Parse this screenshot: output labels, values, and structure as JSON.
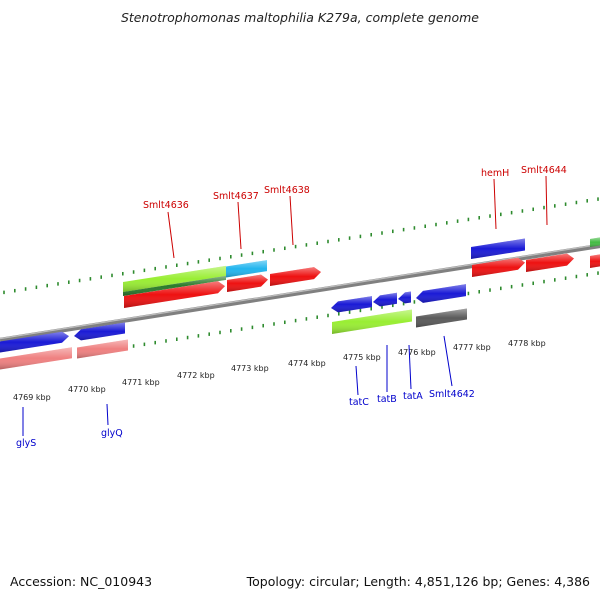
{
  "title": "Stenotrophomonas maltophilia K279a, complete genome",
  "footer": {
    "accession": "Accession: NC_010943",
    "topology": "Topology: circular; Length: 4,851,126 bp; Genes: 4,386"
  },
  "colors": {
    "backbone": "#808080",
    "tick": "#2e8b2e",
    "red": "#ee1111",
    "blue": "#1a1ad6",
    "pink": "#ef8080",
    "lime": "#99ee33",
    "darkgreen": "#2a7a2a",
    "cyan": "#22b5ee",
    "gray": "#5a5a5a",
    "green": "#44bb44",
    "label_red": "#cc0000",
    "label_blue": "#0000cc"
  },
  "kbp_labels": [
    "4769 kbp",
    "4770 kbp",
    "4771 kbp",
    "4772 kbp",
    "4773 kbp",
    "4774 kbp",
    "4775 kbp",
    "4776 kbp",
    "4777 kbp",
    "4778 kbp"
  ],
  "gene_labels_top": [
    "Smlt4636",
    "Smlt4637",
    "Smlt4638",
    "hemH",
    "Smlt4644"
  ],
  "gene_labels_bottom": [
    "glyS",
    "glyQ",
    "tatC",
    "tatB",
    "tatA",
    "Smlt4642"
  ]
}
